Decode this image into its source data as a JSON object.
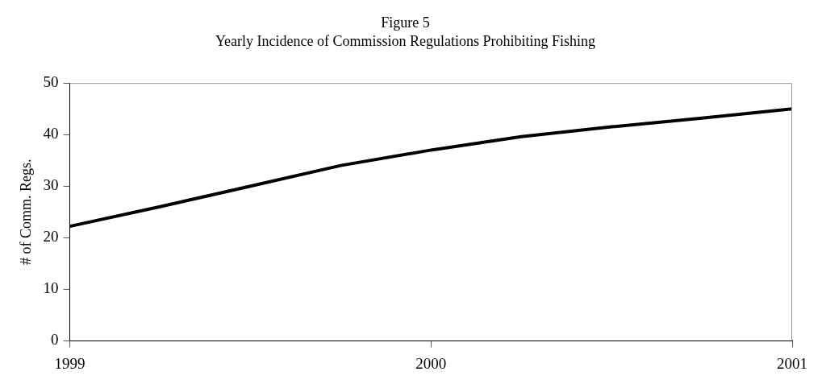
{
  "chart_data": {
    "type": "line",
    "title": "Figure 5",
    "subtitle": "Yearly Incidence of Commission Regulations Prohibiting Fishing",
    "ylabel": "# of Comm. Regs.",
    "x": [
      1999,
      1999.25,
      1999.5,
      1999.75,
      2000,
      2000.25,
      2000.5,
      2000.75,
      2001
    ],
    "series": [
      {
        "color": "#000000",
        "values": [
          22.2,
          26,
          30,
          34,
          37,
          39.6,
          41.5,
          43.2,
          45
        ]
      }
    ],
    "xlim": [
      1999,
      2001
    ],
    "xticks": [
      1999,
      2000,
      2001
    ],
    "ylim": [
      0,
      50
    ],
    "yticks": [
      0,
      10,
      20,
      30,
      40,
      50
    ],
    "grid": false,
    "legend": false,
    "marker": "none",
    "line_style": "solid"
  }
}
